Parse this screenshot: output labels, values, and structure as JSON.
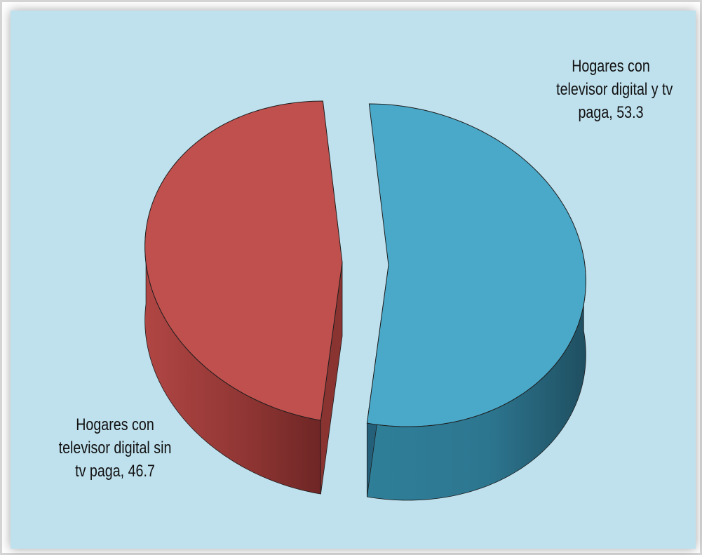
{
  "chart_data": {
    "type": "pie",
    "style": "3d-exploded",
    "title": "",
    "slices": [
      {
        "label_lines": [
          "Hogares con",
          "televisor digital y tv",
          "paga, 53.3"
        ],
        "category": "Hogares con televisor digital y tv paga",
        "value": 53.3,
        "color": "#4aa9c9"
      },
      {
        "label_lines": [
          "Hogares con",
          "televisor digital sin",
          "tv paga, 46.7"
        ],
        "category": "Hogares con televisor digital sin tv paga",
        "value": 46.7,
        "color": "#c0504d"
      }
    ],
    "legend": "none",
    "data_labels": "outside, category name and value"
  },
  "background_color": "#bfe1ee"
}
